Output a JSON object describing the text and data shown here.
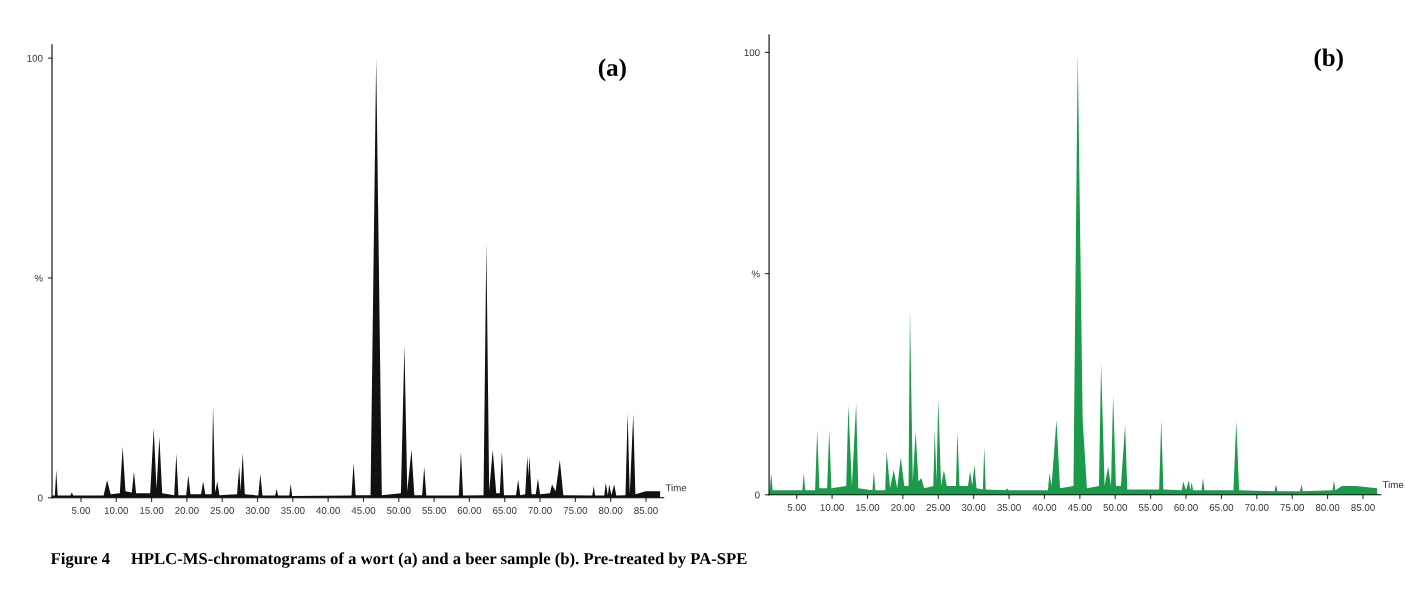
{
  "chart_data": [
    {
      "type": "area",
      "title": "(a)",
      "xlabel": "Time",
      "annotations": [
        "Figure 4     HPLC-MS-chromatograms of a wort (a) and a beer sample (b). Pre-treated by PA-SPE"
      ],
      "xlim": [
        0.9,
        87.5
      ],
      "ylim": [
        0,
        103
      ],
      "xticks": [
        {
          "value": 5,
          "label": "5.00"
        },
        {
          "value": 10,
          "label": "10.00"
        },
        {
          "value": 15,
          "label": "15.00"
        },
        {
          "value": 20,
          "label": "20.00"
        },
        {
          "value": 25,
          "label": "25.00"
        },
        {
          "value": 30,
          "label": "30.00"
        },
        {
          "value": 35,
          "label": "35.00"
        },
        {
          "value": 40,
          "label": "40.00"
        },
        {
          "value": 45,
          "label": "45.00"
        },
        {
          "value": 50,
          "label": "50.00"
        },
        {
          "value": 55,
          "label": "55.00"
        },
        {
          "value": 60,
          "label": "60.00"
        },
        {
          "value": 65,
          "label": "65.00"
        },
        {
          "value": 70,
          "label": "70.00"
        },
        {
          "value": 75,
          "label": "75.00"
        },
        {
          "value": 80,
          "label": "80.00"
        },
        {
          "value": 85,
          "label": "85.00"
        }
      ],
      "yticks": [
        0,
        {
          "value": 50,
          "label": "%"
        },
        100
      ],
      "grid": false,
      "legend": false,
      "series": [
        {
          "color": "#111111",
          "x": [
            0.9,
            1.3,
            1.5,
            1.7,
            3.5,
            3.7,
            3.9,
            8.2,
            8.7,
            9.2,
            10.5,
            10.9,
            11.3,
            12.2,
            12.5,
            12.8,
            14.8,
            15.3,
            15.7,
            16.1,
            16.5,
            18.2,
            18.5,
            18.8,
            19.9,
            20.2,
            20.5,
            22.0,
            22.3,
            22.6,
            23.5,
            23.7,
            24.0,
            24.3,
            24.6,
            27.1,
            27.4,
            27.6,
            27.9,
            28.2,
            30.1,
            30.4,
            30.7,
            32.5,
            32.7,
            32.9,
            34.5,
            34.7,
            34.9,
            43.3,
            43.6,
            43.9,
            46.0,
            46.8,
            47.6,
            50.3,
            50.8,
            51.2,
            51.8,
            52.2,
            53.3,
            53.6,
            53.9,
            58.5,
            58.8,
            59.1,
            62.0,
            62.4,
            62.8,
            63.3,
            63.8,
            64.3,
            64.6,
            64.9,
            66.6,
            66.9,
            67.2,
            67.9,
            68.2,
            68.35,
            68.5,
            68.8,
            69.4,
            69.7,
            70.0,
            71.4,
            71.7,
            72.2,
            72.8,
            73.3,
            77.4,
            77.6,
            77.8,
            79.1,
            79.3,
            79.6,
            79.8,
            80.1,
            80.5,
            80.8,
            82.1,
            82.4,
            82.7,
            83.2,
            83.5,
            85.0,
            87.0
          ],
          "values": [
            0.5,
            0.5,
            6.3,
            0.5,
            0.5,
            1.2,
            0.5,
            0.5,
            4,
            0.8,
            1,
            11.6,
            1.5,
            1.2,
            6,
            1,
            1,
            15.8,
            2,
            13.9,
            1,
            0.6,
            10,
            0.6,
            0.6,
            5.2,
            0.8,
            0.8,
            3.7,
            0.8,
            0.8,
            20.9,
            1.2,
            3.7,
            0.6,
            0.8,
            7.1,
            1.5,
            10.1,
            0.8,
            0.5,
            5.4,
            0.5,
            0.5,
            2,
            0.5,
            0.5,
            3.2,
            0.4,
            0.5,
            7.9,
            0.6,
            0.6,
            100,
            0.6,
            1,
            34.8,
            1.5,
            11,
            0.6,
            0.6,
            7,
            0.5,
            0.5,
            10.5,
            0.5,
            0.6,
            58,
            1.5,
            10.9,
            1,
            1,
            10.5,
            0.6,
            0.6,
            4.1,
            0.6,
            0.8,
            9.5,
            5,
            9.5,
            0.8,
            0.8,
            4.4,
            0.8,
            1,
            3,
            1.5,
            8.6,
            0.6,
            0.5,
            2.7,
            0.5,
            0.5,
            3.4,
            0.6,
            3,
            0.6,
            3,
            0.5,
            0.6,
            19.2,
            0.8,
            19,
            0.8,
            1.5,
            1.5
          ]
        }
      ]
    },
    {
      "type": "area",
      "title": "(b)",
      "xlabel": "Time",
      "xlim": [
        1.1,
        87.5
      ],
      "ylim": [
        0,
        104
      ],
      "xticks": [
        {
          "value": 5,
          "label": "5.00"
        },
        {
          "value": 10,
          "label": "10.00"
        },
        {
          "value": 15,
          "label": "15.00"
        },
        {
          "value": 20,
          "label": "20.00"
        },
        {
          "value": 25,
          "label": "25.00"
        },
        {
          "value": 30,
          "label": "30.00"
        },
        {
          "value": 35,
          "label": "35.00"
        },
        {
          "value": 40,
          "label": "40.00"
        },
        {
          "value": 45,
          "label": "45.00"
        },
        {
          "value": 50,
          "label": "50.00"
        },
        {
          "value": 55,
          "label": "55.00"
        },
        {
          "value": 60,
          "label": "60.00"
        },
        {
          "value": 65,
          "label": "65.00"
        },
        {
          "value": 70,
          "label": "70.00"
        },
        {
          "value": 75,
          "label": "75.00"
        },
        {
          "value": 80,
          "label": "80.00"
        },
        {
          "value": 85,
          "label": "85.00"
        }
      ],
      "yticks": [
        0,
        {
          "value": 50,
          "label": "%"
        },
        100
      ],
      "grid": false,
      "legend": false,
      "series": [
        {
          "color": "#1a9a4a",
          "x": [
            1.1,
            1.2,
            1.4,
            1.6,
            5.8,
            6.0,
            6.2,
            7.6,
            7.9,
            8.2,
            9.3,
            9.6,
            9.9,
            12.0,
            12.3,
            12.8,
            13.4,
            13.7,
            15.7,
            15.9,
            16.1,
            17.5,
            17.7,
            18.2,
            18.7,
            19.2,
            19.7,
            20.2,
            20.8,
            21.0,
            21.4,
            21.8,
            22.2,
            22.6,
            23.0,
            24.3,
            24.5,
            24.75,
            25.0,
            25.4,
            25.8,
            26.2,
            27.5,
            27.7,
            28.0,
            29.2,
            29.5,
            29.8,
            30.1,
            30.4,
            31.3,
            31.5,
            31.7,
            34.5,
            34.7,
            34.9,
            40.5,
            40.7,
            41.0,
            41.7,
            42.2,
            44.1,
            44.7,
            45.4,
            46.0,
            47.7,
            48.0,
            48.5,
            49.0,
            49.4,
            49.7,
            50.1,
            50.8,
            51.4,
            51.7,
            56.2,
            56.5,
            56.8,
            59.4,
            59.6,
            60.0,
            60.4,
            60.6,
            60.8,
            61.0,
            62.2,
            62.4,
            62.6,
            66.7,
            67.1,
            67.5,
            72.5,
            72.7,
            72.9,
            76.1,
            76.3,
            76.5,
            80.7,
            80.9,
            81.1,
            82.0,
            84.0,
            87.0
          ],
          "values": [
            1,
            1,
            4.9,
            1,
            1,
            4.9,
            1,
            1,
            14.7,
            1.5,
            1.5,
            14.7,
            1.5,
            2,
            20.3,
            2,
            20.7,
            1.5,
            1,
            5.3,
            1,
            1,
            9.8,
            1.5,
            5.6,
            1.5,
            8.5,
            2,
            2,
            41.9,
            3,
            14.3,
            3,
            3.8,
            1.5,
            2,
            14.7,
            3,
            21.6,
            2,
            5.6,
            2,
            2,
            14.2,
            2,
            2,
            5.3,
            2,
            6.8,
            1.5,
            1.2,
            10.9,
            1.2,
            1,
            1.5,
            1,
            1,
            4.9,
            2,
            16.9,
            1.5,
            2,
            100,
            16.9,
            1.5,
            2,
            29.7,
            2,
            6.4,
            2,
            22.6,
            2,
            2,
            15.8,
            1.2,
            1.2,
            16.9,
            1.2,
            1,
            3,
            1,
            3.3,
            1,
            2.8,
            1,
            1,
            3.8,
            1,
            1,
            16.7,
            1,
            0.8,
            2.3,
            0.8,
            0.8,
            2.3,
            0.8,
            1,
            3.2,
            1,
            2,
            2,
            1.5
          ]
        }
      ]
    }
  ]
}
